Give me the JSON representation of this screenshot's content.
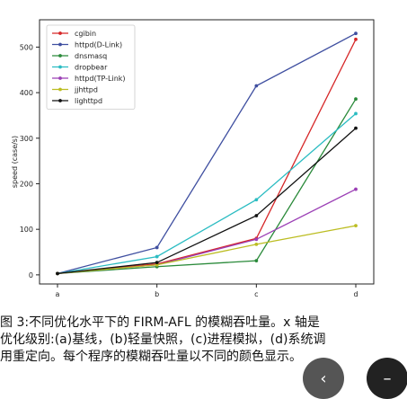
{
  "chart_data": {
    "type": "line",
    "title": "",
    "xlabel": "",
    "ylabel": "speed (case/s)",
    "categories": [
      "a",
      "b",
      "c",
      "d"
    ],
    "ylim": [
      -20,
      560
    ],
    "yticks": [
      0,
      100,
      200,
      300,
      400,
      500
    ],
    "grid": false,
    "legend_position": "top-left",
    "series": [
      {
        "name": "cgibin",
        "color": "#d62728",
        "values": [
          3,
          24,
          80,
          517
        ]
      },
      {
        "name": "httpd(D-Link)",
        "color": "#3f4fa0",
        "values": [
          3,
          60,
          415,
          530
        ]
      },
      {
        "name": "dnsmasq",
        "color": "#2a8a3a",
        "values": [
          3,
          18,
          31,
          386
        ]
      },
      {
        "name": "dropbear",
        "color": "#2bbcc2",
        "values": [
          3,
          40,
          165,
          354
        ]
      },
      {
        "name": "httpd(TP-Link)",
        "color": "#9b3fb5",
        "values": [
          3,
          22,
          78,
          188
        ]
      },
      {
        "name": "jjhttpd",
        "color": "#bcbd22",
        "values": [
          3,
          22,
          67,
          108
        ]
      },
      {
        "name": "lighttpd",
        "color": "#111111",
        "values": [
          3,
          27,
          130,
          322
        ]
      }
    ]
  },
  "caption": {
    "line1": "图 3:不同优化水平下的 FIRM-AFL 的模糊吞吐量。x 轴是",
    "line2": "优化级别:(a)基线，(b)轻量快照，(c)进程模拟，(d)系统调",
    "line3": "用重定向。每个程序的模糊吞吐量以不同的颜色显示。"
  },
  "nav": {
    "prev_glyph": "‹",
    "minus_glyph": "–"
  }
}
